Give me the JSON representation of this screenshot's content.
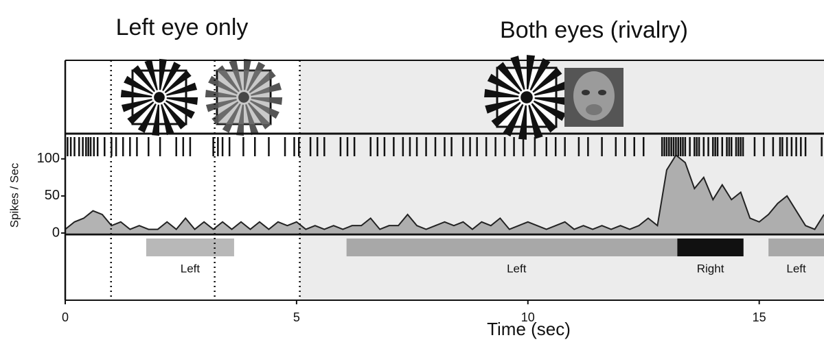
{
  "chart_data": {
    "type": "area",
    "headers": [
      "Left eye only",
      "Both eyes (rivalry)"
    ],
    "ylabel": "Spikes / Sec",
    "xlabel": "Time (sec)",
    "xlim": [
      0,
      16.4
    ],
    "xticks": [
      0,
      5,
      10,
      15
    ],
    "ylim": [
      0,
      134
    ],
    "yticks": [
      0,
      50,
      100
    ],
    "boundaries": [
      0.99,
      3.23,
      5.07
    ],
    "x": [
      0,
      0.2,
      0.4,
      0.6,
      0.8,
      1.0,
      1.2,
      1.4,
      1.6,
      1.8,
      2.0,
      2.2,
      2.4,
      2.6,
      2.8,
      3.0,
      3.2,
      3.4,
      3.6,
      3.8,
      4.0,
      4.2,
      4.4,
      4.6,
      4.8,
      5.0,
      5.2,
      5.4,
      5.6,
      5.8,
      6.0,
      6.2,
      6.4,
      6.6,
      6.8,
      7.0,
      7.2,
      7.4,
      7.6,
      7.8,
      8.0,
      8.2,
      8.4,
      8.6,
      8.8,
      9.0,
      9.2,
      9.4,
      9.6,
      9.8,
      10.0,
      10.2,
      10.4,
      10.6,
      10.8,
      11.0,
      11.2,
      11.4,
      11.6,
      11.8,
      12.0,
      12.2,
      12.4,
      12.6,
      12.8,
      13.0,
      13.2,
      13.4,
      13.6,
      13.8,
      14.0,
      14.2,
      14.4,
      14.6,
      14.8,
      15.0,
      15.2,
      15.4,
      15.6,
      15.8,
      16.0,
      16.2,
      16.4
    ],
    "series": [
      {
        "color": "#9a9a9a",
        "values": [
          5,
          15,
          20,
          30,
          25,
          10,
          15,
          5,
          10,
          5,
          5,
          15,
          5,
          20,
          5,
          15,
          5,
          15,
          5,
          15,
          5,
          15,
          5,
          15,
          10,
          15,
          5,
          10,
          5,
          10,
          5,
          10,
          10,
          20,
          5,
          10,
          10,
          25,
          10,
          5,
          10,
          15,
          10,
          15,
          5,
          15,
          10,
          20,
          5,
          10,
          15,
          10,
          5,
          10,
          15,
          5,
          10,
          5,
          10,
          5,
          10,
          5,
          10,
          20,
          10,
          85,
          105,
          95,
          60,
          75,
          45,
          65,
          45,
          55,
          20,
          15,
          25,
          40,
          50,
          30,
          10,
          5,
          25
        ]
      }
    ],
    "spikes": [
      0.05,
      0.12,
      0.2,
      0.3,
      0.38,
      0.45,
      0.5,
      0.55,
      0.62,
      0.7,
      0.85,
      1.0,
      1.1,
      1.25,
      1.4,
      1.55,
      1.8,
      2.05,
      2.4,
      2.55,
      2.7,
      3.2,
      3.3,
      3.4,
      3.55,
      3.85,
      4.1,
      4.4,
      4.75,
      4.95,
      5.05,
      5.3,
      5.45,
      5.6,
      5.95,
      6.1,
      6.25,
      6.6,
      6.75,
      6.9,
      7.1,
      7.3,
      7.45,
      7.6,
      7.8,
      8.0,
      8.2,
      8.35,
      8.6,
      8.75,
      8.9,
      9.1,
      9.3,
      9.5,
      9.7,
      9.9,
      10.15,
      10.4,
      10.6,
      10.8,
      11.1,
      11.3,
      11.6,
      11.9,
      12.1,
      12.3,
      12.5,
      12.9,
      12.95,
      13.0,
      13.05,
      13.1,
      13.15,
      13.2,
      13.25,
      13.3,
      13.35,
      13.4,
      13.5,
      13.6,
      13.65,
      13.7,
      13.8,
      13.9,
      14.0,
      14.05,
      14.1,
      14.2,
      14.3,
      14.35,
      14.4,
      14.5,
      14.55,
      14.6,
      14.65,
      14.9,
      15.1,
      15.3,
      15.45,
      15.5,
      15.6,
      15.7,
      15.8,
      15.9,
      16.0,
      16.35
    ],
    "percepts": [
      {
        "label": "Left",
        "start": 1.75,
        "end": 3.65,
        "color": "#b8b8b8"
      },
      {
        "label": "Left",
        "start": 6.08,
        "end": 13.43,
        "color": "#a8a8a8"
      },
      {
        "label": "Right",
        "start": 13.23,
        "end": 14.66,
        "color": "#111111"
      },
      {
        "label": "Left",
        "start": 15.2,
        "end": 16.4,
        "color": "#a8a8a8"
      }
    ]
  }
}
